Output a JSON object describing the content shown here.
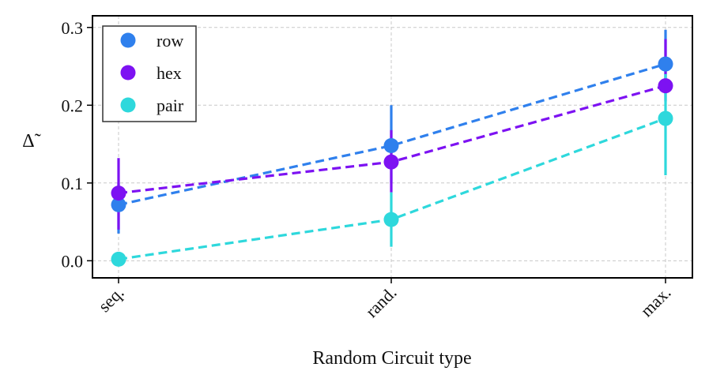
{
  "chart_data": {
    "type": "line",
    "title": "",
    "xlabel": "Random Circuit type",
    "ylabel": "Δ̃",
    "categories": [
      "seq.",
      "rand.",
      "max."
    ],
    "ylim": [
      -0.022,
      0.315
    ],
    "yticks": [
      0.0,
      0.1,
      0.2,
      0.3
    ],
    "ytick_labels": [
      "0.0",
      "0.1",
      "0.2",
      "0.3"
    ],
    "grid": true,
    "legend_position": "top-left",
    "series": [
      {
        "name": "row",
        "color": "#2f80ed",
        "values": [
          0.072,
          0.148,
          0.253
        ],
        "err_low": [
          0.035,
          0.1,
          0.215
        ],
        "err_high": [
          0.1,
          0.2,
          0.297
        ]
      },
      {
        "name": "hex",
        "color": "#7d12f2",
        "values": [
          0.087,
          0.127,
          0.225
        ],
        "err_low": [
          0.04,
          0.088,
          0.205
        ],
        "err_high": [
          0.132,
          0.168,
          0.285
        ]
      },
      {
        "name": "pair",
        "color": "#2ed8dc",
        "values": [
          0.002,
          0.053,
          0.183
        ],
        "err_low": [
          0.0,
          0.018,
          0.11
        ],
        "err_high": [
          0.01,
          0.088,
          0.24
        ]
      }
    ]
  }
}
